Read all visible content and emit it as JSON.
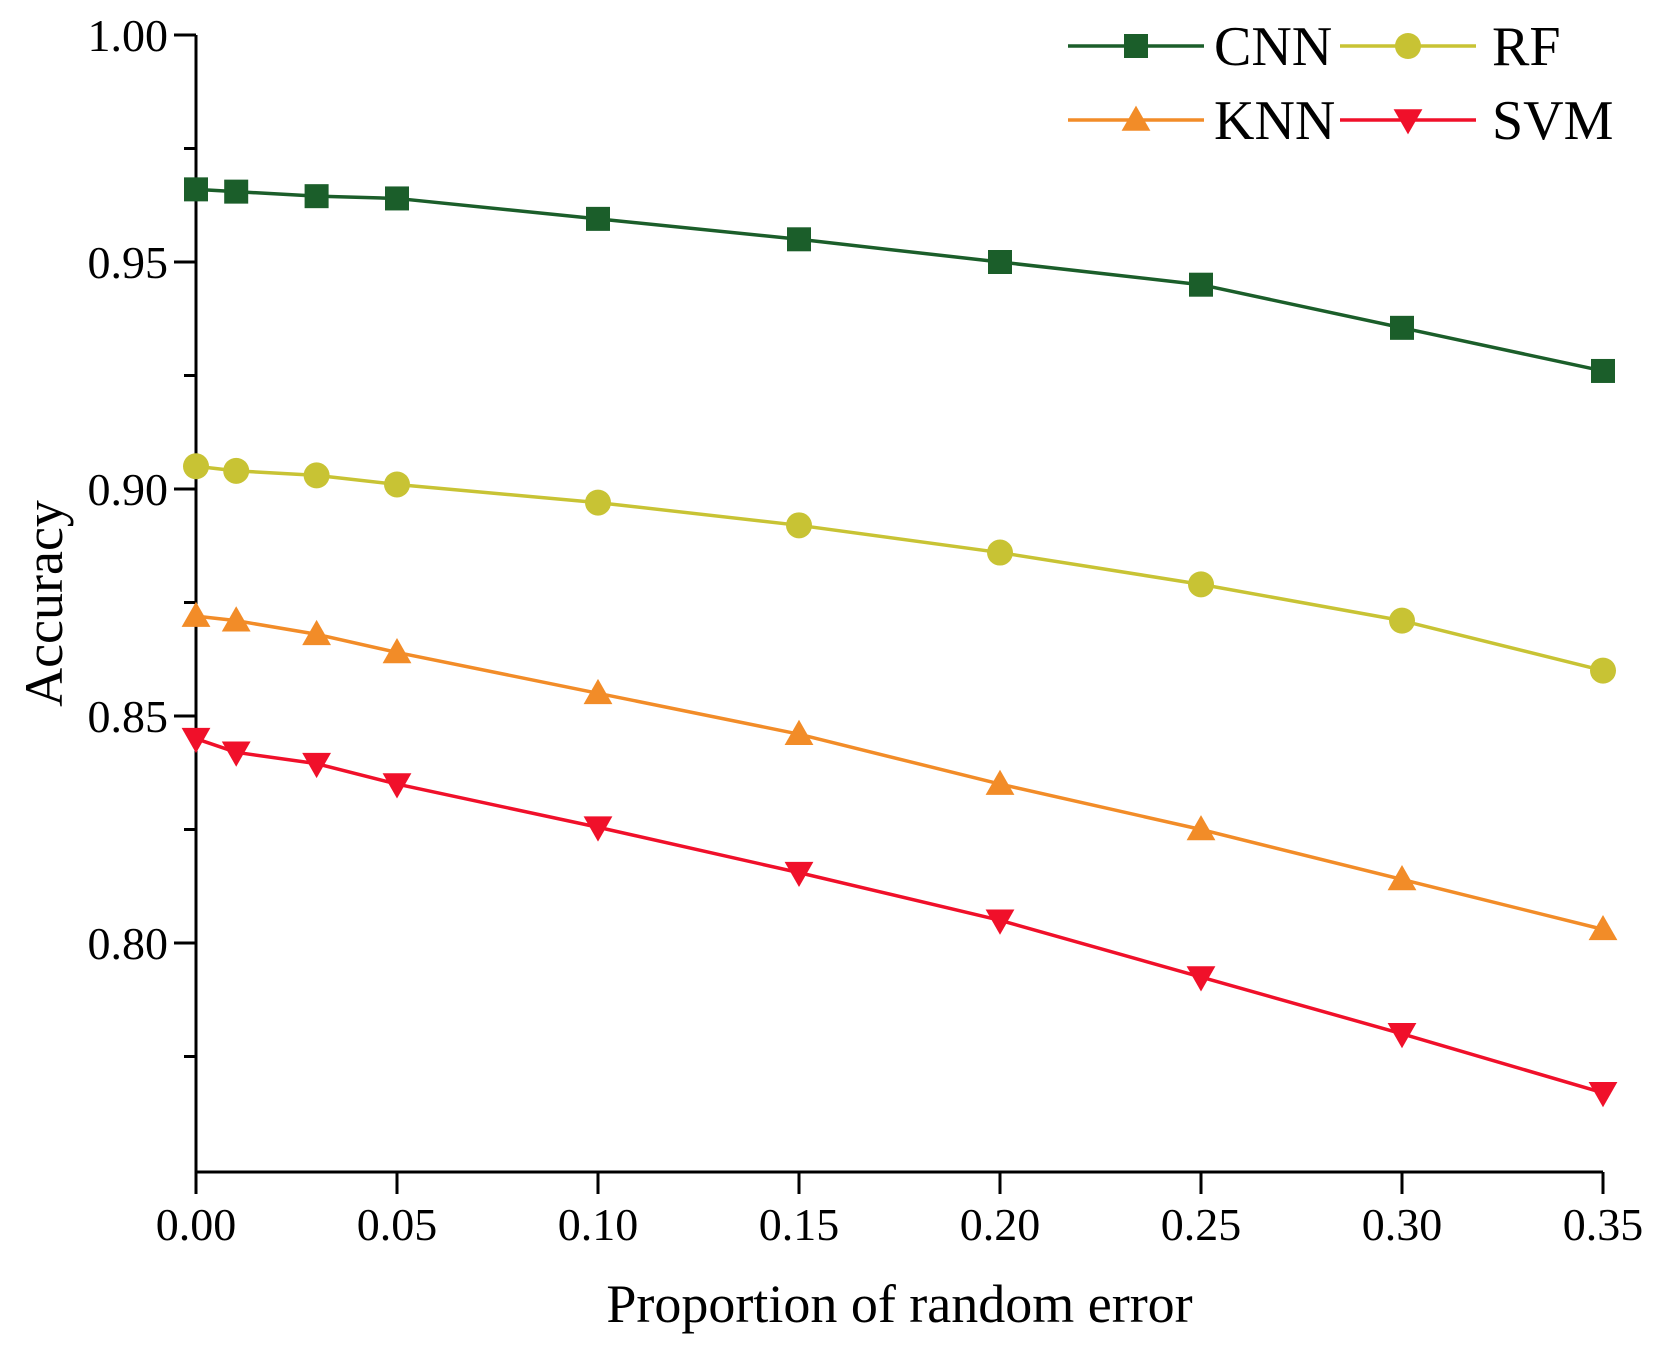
{
  "chart_data": {
    "type": "line",
    "title": "",
    "xlabel": "Proportion of random error",
    "ylabel": "Accuracy",
    "x": [
      0.0,
      0.01,
      0.03,
      0.05,
      0.1,
      0.15,
      0.2,
      0.25,
      0.3,
      0.35
    ],
    "xlim": [
      0.0,
      0.35
    ],
    "ylim": [
      0.75,
      1.0
    ],
    "x_ticks": [
      0.0,
      0.05,
      0.1,
      0.15,
      0.2,
      0.25,
      0.3,
      0.35
    ],
    "x_tick_labels": [
      "0.00",
      "0.05",
      "0.10",
      "0.15",
      "0.20",
      "0.25",
      "0.30",
      "0.35"
    ],
    "y_major_ticks": [
      0.8,
      0.85,
      0.9,
      0.95,
      1.0
    ],
    "y_tick_labels": [
      "0.80",
      "0.85",
      "0.90",
      "0.95",
      "1.00"
    ],
    "y_minor_ticks": [
      0.775,
      0.825,
      0.875,
      0.925,
      0.975
    ],
    "grid": false,
    "legend_position": "top-right",
    "series": [
      {
        "name": "CNN",
        "color": "#1b5e2a",
        "marker": "square",
        "values": [
          0.966,
          0.9655,
          0.9645,
          0.964,
          0.9595,
          0.955,
          0.95,
          0.945,
          0.9355,
          0.926
        ]
      },
      {
        "name": "RF",
        "color": "#c8c334",
        "marker": "circle",
        "values": [
          0.905,
          0.904,
          0.903,
          0.901,
          0.897,
          0.892,
          0.886,
          0.879,
          0.871,
          0.86
        ]
      },
      {
        "name": "KNN",
        "color": "#f28c28",
        "marker": "triangle-up",
        "values": [
          0.872,
          0.871,
          0.868,
          0.864,
          0.855,
          0.846,
          0.835,
          0.825,
          0.814,
          0.803
        ]
      },
      {
        "name": "SVM",
        "color": "#f0102a",
        "marker": "triangle-down",
        "values": [
          0.845,
          0.842,
          0.8395,
          0.835,
          0.8255,
          0.8155,
          0.805,
          0.7925,
          0.78,
          0.767
        ]
      }
    ]
  }
}
